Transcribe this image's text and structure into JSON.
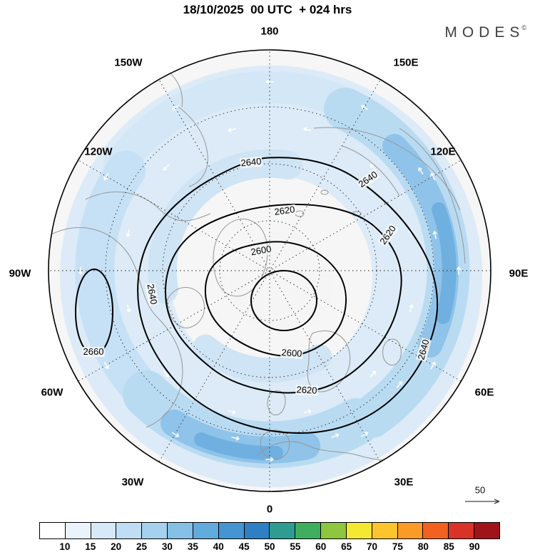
{
  "header": {
    "title": "18/10/2025  00 UTC  + 024 hrs",
    "brand": "MODES",
    "brand_mark": "©"
  },
  "map": {
    "longitude_labels": [
      {
        "text": "180"
      },
      {
        "text": "150W"
      },
      {
        "text": "150E"
      },
      {
        "text": "120W"
      },
      {
        "text": "120E"
      },
      {
        "text": "90W"
      },
      {
        "text": "90E"
      },
      {
        "text": "60W"
      },
      {
        "text": "60E"
      },
      {
        "text": "30W"
      },
      {
        "text": "30E"
      },
      {
        "text": "0"
      }
    ],
    "contour_labels": [
      {
        "text": "2640"
      },
      {
        "text": "2640"
      },
      {
        "text": "2620"
      },
      {
        "text": "2620"
      },
      {
        "text": "2600"
      },
      {
        "text": "2640"
      },
      {
        "text": "2660"
      },
      {
        "text": "2600"
      },
      {
        "text": "2620"
      },
      {
        "text": "2640"
      }
    ],
    "wind_scale_label": "50"
  },
  "colorbar": {
    "labels": [
      "10",
      "15",
      "20",
      "25",
      "30",
      "35",
      "40",
      "45",
      "50",
      "55",
      "60",
      "65",
      "70",
      "75",
      "80",
      "85",
      "90"
    ],
    "colors": [
      "#ffffff",
      "#eaf3fb",
      "#d6e9f8",
      "#c0def3",
      "#a5d1ee",
      "#85c0e7",
      "#62abdd",
      "#4495d2",
      "#2f7fc3",
      "#2d9d92",
      "#3fae5f",
      "#8ec63f",
      "#f5e832",
      "#fcc52d",
      "#fa9a27",
      "#f2611f",
      "#d93226",
      "#a01318"
    ]
  },
  "chart_data": {
    "type": "heatmap",
    "title": "18/10/2025 00 UTC + 024 hrs",
    "projection": "north_polar_stereographic",
    "meridian_labels": [
      "180",
      "150W",
      "150E",
      "120W",
      "120E",
      "90W",
      "90E",
      "60W",
      "60E",
      "30W",
      "30E",
      "0"
    ],
    "contour_levels_labeled": [
      2600,
      2620,
      2640,
      2660
    ],
    "contour_interval": 20,
    "contour_label_instances": [
      "2640",
      "2640",
      "2620",
      "2620",
      "2600",
      "2640",
      "2660",
      "2600",
      "2620",
      "2640"
    ],
    "shading_colorbar": {
      "tick_labels": [
        10,
        15,
        20,
        25,
        30,
        35,
        40,
        45,
        50,
        55,
        60,
        65,
        70,
        75,
        80,
        85,
        90
      ],
      "colors": [
        "#ffffff",
        "#eaf3fb",
        "#d6e9f8",
        "#c0def3",
        "#a5d1ee",
        "#85c0e7",
        "#62abdd",
        "#4495d2",
        "#2f7fc3",
        "#2d9d92",
        "#3fae5f",
        "#8ec63f",
        "#f5e832",
        "#fcc52d",
        "#fa9a27",
        "#f2611f",
        "#d93226",
        "#a01318"
      ],
      "position": "bottom"
    },
    "vector_reference_value": 50,
    "shaded_range_visible": [
      10,
      40
    ]
  }
}
